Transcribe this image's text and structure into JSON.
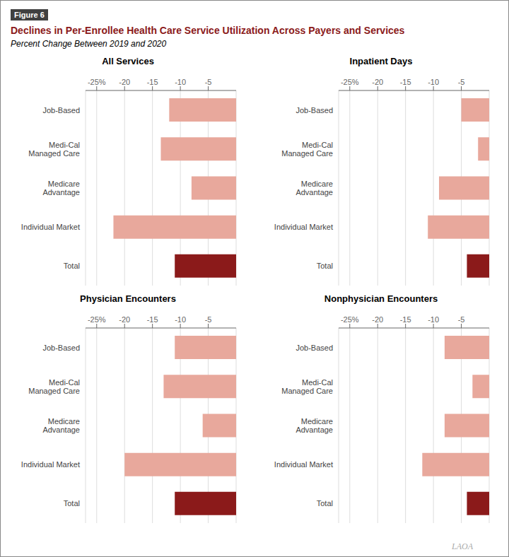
{
  "title": "Declines in Per-Enrollee Health Care Service Utilization Across Payers and Services",
  "subtitle": "Percent Change Between 2019 and 2020",
  "annotations": [
    "Figure 6",
    "LAOA"
  ],
  "chart_data": [
    {
      "type": "bar",
      "orientation": "horizontal",
      "title": "All Services",
      "categories": [
        "Job-Based",
        "Medi-Cal\nManaged Care",
        "Medicare\nAdvantage",
        "Individual Market",
        "Total"
      ],
      "values": [
        -12,
        -13.5,
        -8,
        -22,
        -11
      ],
      "colors": [
        "#E8A89C",
        "#E8A89C",
        "#E8A89C",
        "#E8A89C",
        "#8B1A1A"
      ],
      "xlim": [
        -27,
        0
      ],
      "xticks": [
        {
          "value": -25,
          "label": "-25%"
        },
        -20,
        -15,
        -10,
        -5
      ],
      "grid": true
    },
    {
      "type": "bar",
      "orientation": "horizontal",
      "title": "Inpatient Days",
      "categories": [
        "Job-Based",
        "Medi-Cal\nManaged Care",
        "Medicare\nAdvantage",
        "Individual Market",
        "Total"
      ],
      "values": [
        -5,
        -2,
        -9,
        -11,
        -4
      ],
      "colors": [
        "#E8A89C",
        "#E8A89C",
        "#E8A89C",
        "#E8A89C",
        "#8B1A1A"
      ],
      "xlim": [
        -27,
        0
      ],
      "xticks": [
        {
          "value": -25,
          "label": "-25%"
        },
        -20,
        -15,
        -10,
        -5
      ],
      "grid": true
    },
    {
      "type": "bar",
      "orientation": "horizontal",
      "title": "Physician Encounters",
      "categories": [
        "Job-Based",
        "Medi-Cal\nManaged Care",
        "Medicare\nAdvantage",
        "Individual Market",
        "Total"
      ],
      "values": [
        -11,
        -13,
        -6,
        -20,
        -11
      ],
      "colors": [
        "#E8A89C",
        "#E8A89C",
        "#E8A89C",
        "#E8A89C",
        "#8B1A1A"
      ],
      "xlim": [
        -27,
        0
      ],
      "xticks": [
        {
          "value": -25,
          "label": "-25%"
        },
        -20,
        -15,
        -10,
        -5
      ],
      "grid": true
    },
    {
      "type": "bar",
      "orientation": "horizontal",
      "title": "Nonphysician Encounters",
      "categories": [
        "Job-Based",
        "Medi-Cal\nManaged Care",
        "Medicare\nAdvantage",
        "Individual Market",
        "Total"
      ],
      "values": [
        -8,
        -3,
        -8,
        -12,
        -4
      ],
      "colors": [
        "#E8A89C",
        "#E8A89C",
        "#E8A89C",
        "#E8A89C",
        "#8B1A1A"
      ],
      "xlim": [
        -27,
        0
      ],
      "xticks": [
        {
          "value": -25,
          "label": "-25%"
        },
        -20,
        -15,
        -10,
        -5
      ],
      "grid": true
    }
  ]
}
